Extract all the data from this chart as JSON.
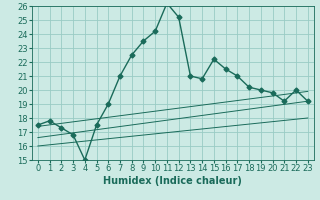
{
  "title": "",
  "xlabel": "Humidex (Indice chaleur)",
  "bg_color": "#cceae4",
  "grid_color": "#99ccc4",
  "line_color": "#1a6b5a",
  "xlim": [
    -0.5,
    23.5
  ],
  "ylim": [
    15,
    26
  ],
  "yticks": [
    15,
    16,
    17,
    18,
    19,
    20,
    21,
    22,
    23,
    24,
    25,
    26
  ],
  "xticks": [
    0,
    1,
    2,
    3,
    4,
    5,
    6,
    7,
    8,
    9,
    10,
    11,
    12,
    13,
    14,
    15,
    16,
    17,
    18,
    19,
    20,
    21,
    22,
    23
  ],
  "main_x": [
    0,
    1,
    2,
    3,
    4,
    5,
    6,
    7,
    8,
    9,
    10,
    11,
    12,
    13,
    14,
    15,
    16,
    17,
    18,
    19,
    20,
    21,
    22,
    23
  ],
  "main_y": [
    17.5,
    17.8,
    17.3,
    16.8,
    15.0,
    17.5,
    19.0,
    21.0,
    22.5,
    23.5,
    24.2,
    26.2,
    25.2,
    21.0,
    20.8,
    22.2,
    21.5,
    21.0,
    20.2,
    20.0,
    19.8,
    19.2,
    20.0,
    19.2
  ],
  "reg_lines": [
    {
      "x": [
        0,
        23
      ],
      "y": [
        16.0,
        18.0
      ]
    },
    {
      "x": [
        0,
        23
      ],
      "y": [
        16.6,
        19.2
      ]
    },
    {
      "x": [
        0,
        23
      ],
      "y": [
        17.4,
        19.9
      ]
    }
  ],
  "marker": "D",
  "marker_size": 2.5,
  "line_width": 1.0,
  "font_color": "#1a6b5a",
  "font_size": 6,
  "xlabel_font_size": 7
}
